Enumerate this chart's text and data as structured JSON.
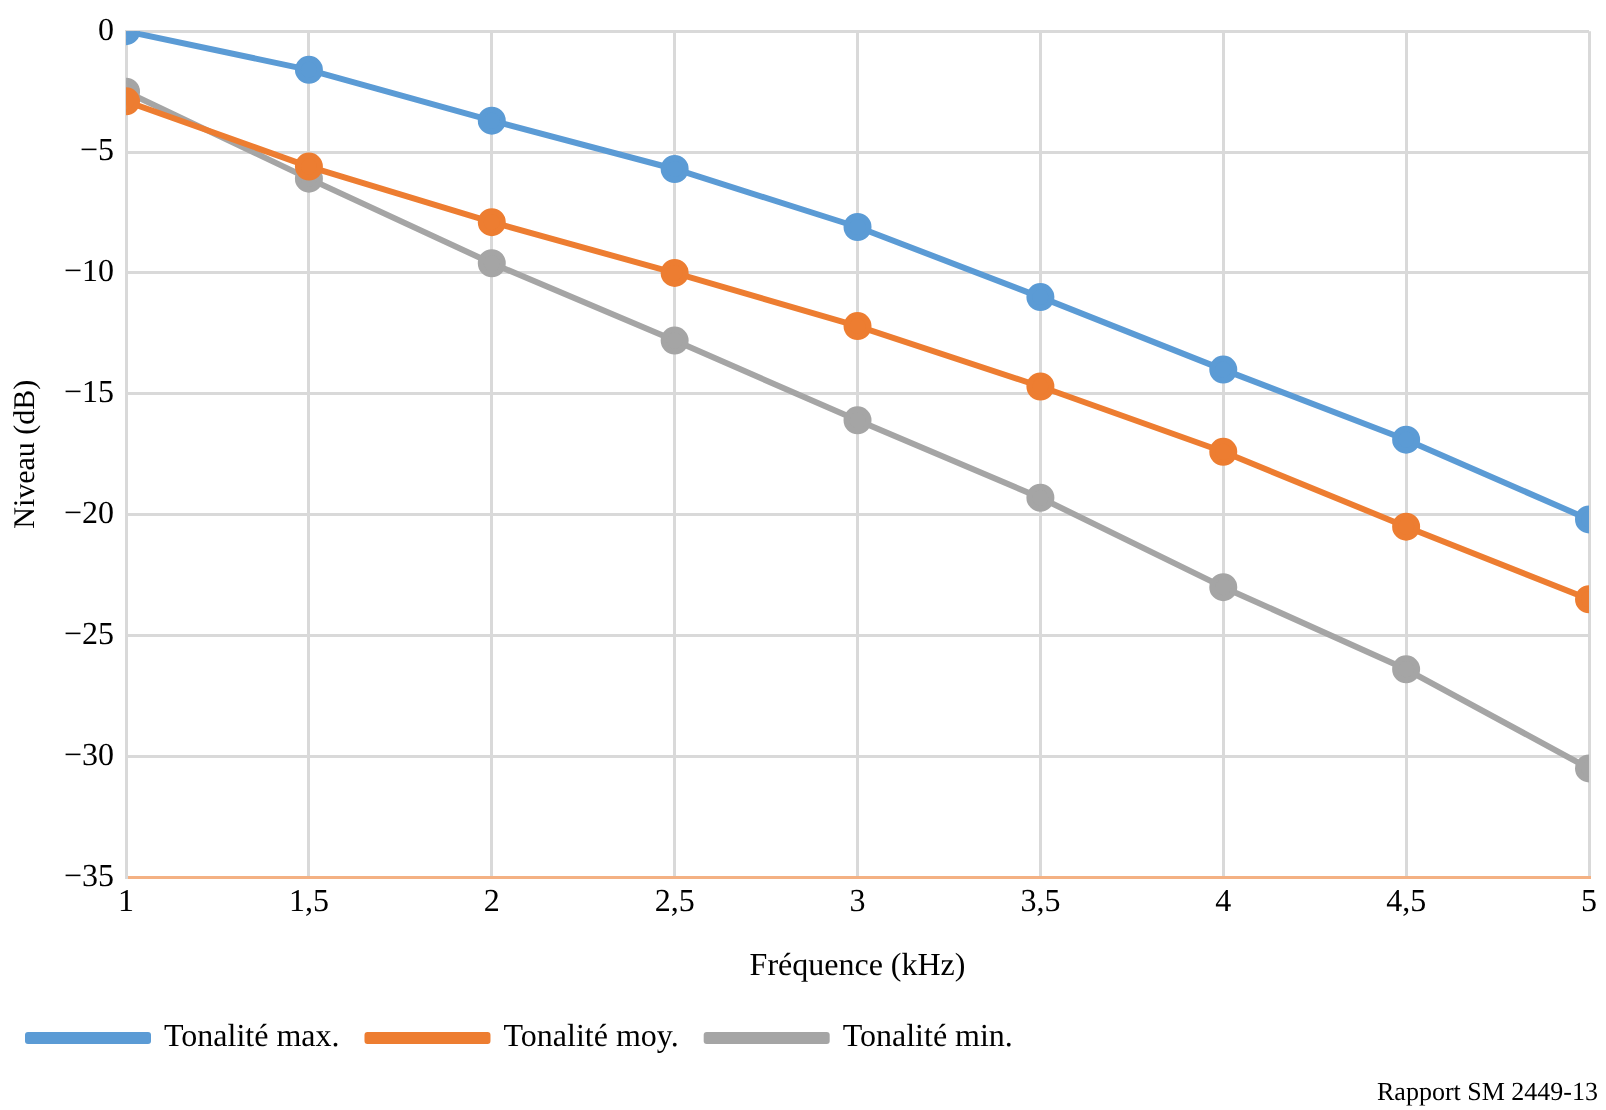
{
  "chart_data": {
    "type": "line",
    "xlabel": "Fréquence (kHz)",
    "ylabel": "Niveau (dB)",
    "x": [
      1,
      1.5,
      2,
      2.5,
      3,
      3.5,
      4,
      4.5,
      5
    ],
    "series": [
      {
        "name": "Tonalité max.",
        "color": "#5b9bd5",
        "values": [
          0,
          -1.6,
          -3.7,
          -5.7,
          -8.1,
          -11.0,
          -14.0,
          -16.9,
          -20.2
        ]
      },
      {
        "name": "Tonalité moy.",
        "color": "#ed7d31",
        "values": [
          -2.9,
          -5.6,
          -7.9,
          -10.0,
          -12.2,
          -14.7,
          -17.4,
          -20.5,
          -23.5
        ]
      },
      {
        "name": "Tonalité min.",
        "color": "#a5a5a5",
        "values": [
          -2.5,
          -6.1,
          -9.6,
          -12.8,
          -16.1,
          -19.3,
          -23.0,
          -26.4,
          -30.5
        ]
      }
    ],
    "xlim": [
      1,
      5
    ],
    "xticks": [
      1,
      {
        "value": 1.5,
        "label": "1,5"
      },
      2,
      {
        "value": 2.5,
        "label": "2,5"
      },
      3,
      {
        "value": 3.5,
        "label": "3,5"
      },
      4,
      {
        "value": 4.5,
        "label": "4,5"
      },
      5
    ],
    "ylim": [
      -35,
      0
    ],
    "yticks": [
      {
        "value": -35,
        "label": "−35"
      },
      {
        "value": -30,
        "label": "−30"
      },
      {
        "value": -25,
        "label": "−25"
      },
      {
        "value": -20,
        "label": "−20"
      },
      {
        "value": -15,
        "label": "−15"
      },
      {
        "value": -10,
        "label": "−10"
      },
      {
        "value": -5,
        "label": "−5"
      },
      0
    ],
    "grid": true,
    "legend": "bottom",
    "marker": "circle",
    "line_style": "solid",
    "annotations": [
      "Rapport SM 2449-13"
    ]
  }
}
